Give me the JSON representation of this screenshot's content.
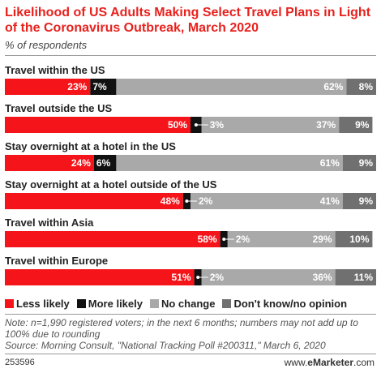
{
  "chart_data": {
    "type": "bar",
    "stacked": true,
    "orientation": "horizontal",
    "title": "Likelihood of US Adults Making Select Travel Plans in Light of the Coronavirus Outbreak, March 2020",
    "subtitle": "% of respondents",
    "unit": "%",
    "categories": [
      "Travel within the US",
      "Travel outside the US",
      "Stay overnight at a hotel in the US",
      "Stay overnight at a hotel outside of the US",
      "Travel within Asia",
      "Travel within Europe"
    ],
    "series": [
      {
        "name": "Less likely",
        "color": "#f4141a",
        "values": [
          23,
          50,
          24,
          48,
          58,
          51
        ]
      },
      {
        "name": "More likely",
        "color": "#111111",
        "values": [
          7,
          3,
          6,
          2,
          2,
          2
        ]
      },
      {
        "name": "No change",
        "color": "#a9a9a9",
        "values": [
          62,
          37,
          61,
          41,
          29,
          36
        ]
      },
      {
        "name": "Don't know/no opinion",
        "color": "#707070",
        "values": [
          8,
          9,
          9,
          9,
          10,
          11
        ]
      }
    ],
    "xlim": [
      0,
      100
    ]
  },
  "footer": {
    "note": "Note: n=1,990 registered voters; in the next 6 months; numbers may not add up to 100% due to rounding",
    "source": "Source: Morning Consult, \"National Tracking Poll #200311,\" March 6, 2020",
    "chart_id": "253596",
    "brand_prefix": "www.",
    "brand_name": "eMarketer",
    "brand_suffix": ".com"
  }
}
